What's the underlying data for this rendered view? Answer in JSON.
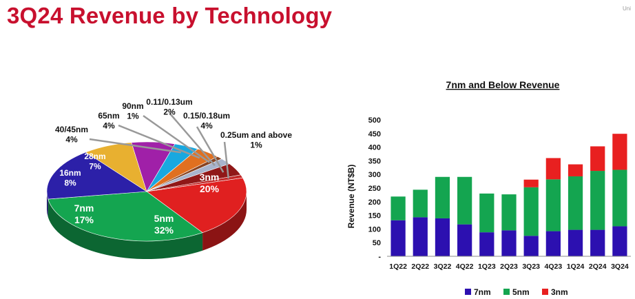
{
  "header": {
    "title": "3Q24 Revenue by Technology",
    "corner_mark": "Uni"
  },
  "chart_data": [
    {
      "type": "pie",
      "title": "",
      "slices": [
        {
          "label": "3nm",
          "value": 20,
          "text": "20%",
          "color": "#e02020"
        },
        {
          "label": "5nm",
          "value": 32,
          "text": "32%",
          "color": "#14a550"
        },
        {
          "label": "7nm",
          "value": 17,
          "text": "17%",
          "color": "#2c20a8"
        },
        {
          "label": "16nm",
          "value": 8,
          "text": "8%",
          "color": "#e8b030"
        },
        {
          "label": "28nm",
          "value": 7,
          "text": "7%",
          "color": "#a020a8"
        },
        {
          "label": "40/45nm",
          "value": 4,
          "text": "4%",
          "color": "#18a8e0"
        },
        {
          "label": "65nm",
          "value": 4,
          "text": "4%",
          "color": "#e07020"
        },
        {
          "label": "90nm",
          "value": 1,
          "text": "1%",
          "color": "#884422"
        },
        {
          "label": "0.11/0.13um",
          "value": 2,
          "text": "2%",
          "color": "#a8b4cc"
        },
        {
          "label": "0.15/0.18um",
          "value": 4,
          "text": "4%",
          "color": "#901818"
        },
        {
          "label": "0.25um and above",
          "value": 1,
          "text": "1%",
          "color": "#c02828"
        }
      ]
    },
    {
      "type": "bar",
      "stacked": true,
      "title": "7nm and Below Revenue",
      "xlabel": "",
      "ylabel": "Revenue (NT$B)",
      "ylim": [
        0,
        500
      ],
      "yticks": [
        "-",
        "50",
        "100",
        "150",
        "200",
        "250",
        "300",
        "350",
        "400",
        "450",
        "500"
      ],
      "categories": [
        "1Q22",
        "2Q22",
        "3Q22",
        "4Q22",
        "1Q23",
        "2Q23",
        "3Q23",
        "4Q23",
        "1Q24",
        "2Q24",
        "3Q24"
      ],
      "series": [
        {
          "name": "7nm",
          "color": "#2c10b0",
          "values": [
            132,
            143,
            139,
            117,
            88,
            95,
            75,
            92,
            97,
            97,
            110
          ]
        },
        {
          "name": "5nm",
          "color": "#14a550",
          "values": [
            87,
            101,
            152,
            174,
            142,
            132,
            178,
            190,
            196,
            216,
            207
          ]
        },
        {
          "name": "3nm",
          "color": "#e82020",
          "values": [
            0,
            0,
            0,
            0,
            0,
            0,
            28,
            78,
            44,
            90,
            132
          ]
        }
      ],
      "legend": {
        "position": "bottom"
      }
    }
  ]
}
